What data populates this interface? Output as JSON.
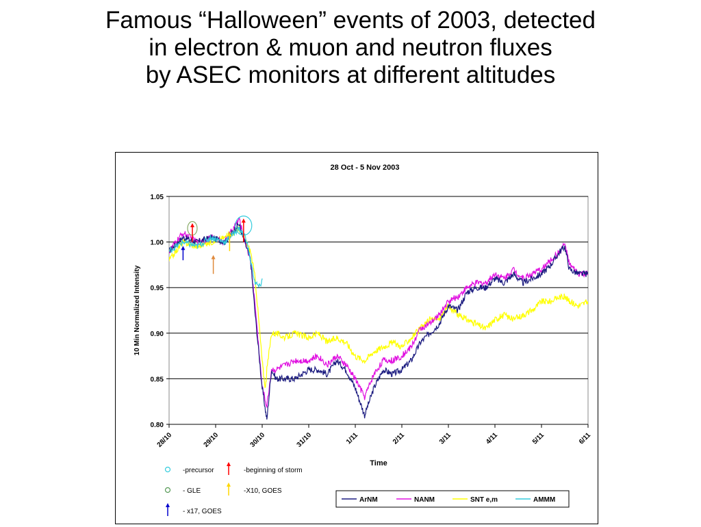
{
  "slide": {
    "title_lines": [
      "Famous “Halloween” events of 2003, detected",
      "in electron & muon and neutron fluxes",
      "by ASEC monitors at different altitudes"
    ]
  },
  "chart_data": {
    "type": "line",
    "title": "28 Oct - 5 Nov 2003",
    "xlabel": "Time",
    "ylabel": "10 Min Normalized Intensity",
    "x_unit": "days since 28/10 00:00",
    "xlim": [
      0,
      9
    ],
    "ylim": [
      0.8,
      1.05
    ],
    "yticks": [
      0.8,
      0.85,
      0.9,
      0.95,
      1.0,
      1.05
    ],
    "ytick_labels": [
      "0.80",
      "0.85",
      "0.90",
      "0.95",
      "1.00",
      "1.05"
    ],
    "xtick_labels": [
      "28/10",
      "29/10",
      "30/10",
      "31/10",
      "1/11",
      "2/11",
      "3/11",
      "4/11",
      "5/11",
      "6/11"
    ],
    "grid": "horizontal major",
    "legend_position": "bottom-right",
    "series": [
      {
        "name": "ArNM",
        "color": "#1c1c80",
        "x": [
          0,
          0.3,
          0.6,
          0.9,
          1.2,
          1.5,
          1.75,
          1.85,
          2.0,
          2.03,
          2.07,
          2.1,
          2.2,
          2.3,
          2.5,
          2.7,
          3.0,
          3.2,
          3.4,
          3.6,
          3.8,
          4.0,
          4.2,
          4.4,
          4.6,
          4.8,
          5.0,
          5.2,
          5.4,
          5.6,
          5.8,
          6.0,
          6.2,
          6.4,
          6.6,
          6.8,
          7.0,
          7.2,
          7.4,
          7.6,
          7.8,
          8.0,
          8.2,
          8.4,
          8.5,
          8.6,
          8.8,
          9.0
        ],
        "y": [
          0.99,
          1.005,
          1.0,
          1.005,
          1.0,
          1.02,
          0.98,
          0.92,
          0.84,
          0.83,
          0.815,
          0.805,
          0.86,
          0.85,
          0.85,
          0.85,
          0.86,
          0.86,
          0.855,
          0.87,
          0.86,
          0.84,
          0.81,
          0.84,
          0.86,
          0.855,
          0.86,
          0.87,
          0.89,
          0.9,
          0.91,
          0.93,
          0.925,
          0.945,
          0.95,
          0.95,
          0.96,
          0.955,
          0.965,
          0.955,
          0.96,
          0.965,
          0.975,
          0.99,
          0.995,
          0.97,
          0.965,
          0.965
        ]
      },
      {
        "name": "NANM",
        "color": "#e010e0",
        "x": [
          0,
          0.3,
          0.6,
          0.9,
          1.2,
          1.5,
          1.75,
          1.85,
          2.0,
          2.03,
          2.07,
          2.1,
          2.2,
          2.3,
          2.5,
          2.7,
          3.0,
          3.2,
          3.4,
          3.6,
          3.8,
          4.0,
          4.2,
          4.4,
          4.6,
          4.8,
          5.0,
          5.2,
          5.4,
          5.6,
          5.8,
          6.0,
          6.2,
          6.4,
          6.6,
          6.8,
          7.0,
          7.2,
          7.4,
          7.6,
          7.8,
          8.0,
          8.2,
          8.4,
          8.5,
          8.6,
          8.8,
          9.0
        ],
        "y": [
          0.99,
          1.01,
          1.0,
          1.005,
          1.0,
          1.025,
          0.98,
          0.93,
          0.84,
          0.835,
          0.825,
          0.82,
          0.86,
          0.86,
          0.865,
          0.87,
          0.87,
          0.875,
          0.865,
          0.875,
          0.865,
          0.85,
          0.83,
          0.855,
          0.87,
          0.87,
          0.875,
          0.885,
          0.905,
          0.91,
          0.92,
          0.935,
          0.94,
          0.95,
          0.955,
          0.955,
          0.965,
          0.96,
          0.97,
          0.96,
          0.965,
          0.97,
          0.98,
          0.99,
          0.998,
          0.975,
          0.965,
          0.965
        ]
      },
      {
        "name": "SNT e,m",
        "color": "#ffff00",
        "x": [
          0,
          0.3,
          0.6,
          0.9,
          1.2,
          1.5,
          1.75,
          1.85,
          2.0,
          2.03,
          2.07,
          2.1,
          2.2,
          2.3,
          2.5,
          2.7,
          3.0,
          3.2,
          3.4,
          3.6,
          3.8,
          4.0,
          4.2,
          4.4,
          4.6,
          4.8,
          5.0,
          5.2,
          5.4,
          5.6,
          5.8,
          6.0,
          6.2,
          6.4,
          6.6,
          6.8,
          7.0,
          7.2,
          7.4,
          7.6,
          7.8,
          8.0,
          8.2,
          8.4,
          8.5,
          8.6,
          8.8,
          9.0
        ],
        "y": [
          0.98,
          1.0,
          0.995,
          1.0,
          1.005,
          1.015,
          0.99,
          0.96,
          0.87,
          0.855,
          0.84,
          0.86,
          0.9,
          0.9,
          0.895,
          0.9,
          0.895,
          0.9,
          0.89,
          0.895,
          0.89,
          0.875,
          0.87,
          0.88,
          0.885,
          0.89,
          0.885,
          0.895,
          0.905,
          0.915,
          0.915,
          0.93,
          0.92,
          0.915,
          0.91,
          0.905,
          0.915,
          0.92,
          0.915,
          0.92,
          0.925,
          0.935,
          0.935,
          0.94,
          0.94,
          0.935,
          0.93,
          0.935
        ]
      },
      {
        "name": "AMMM",
        "color": "#33ccdd",
        "x": [
          0,
          0.3,
          0.6,
          0.9,
          1.2,
          1.5,
          1.65,
          1.75,
          1.85,
          1.95,
          2.0
        ],
        "y": [
          0.99,
          1.0,
          0.995,
          1.005,
          1.0,
          1.015,
          1.005,
          0.98,
          0.955,
          0.95,
          0.96
        ]
      }
    ],
    "annotation_legend": [
      {
        "symbol": "circle",
        "color": "#33ccdd",
        "label": "-precursor"
      },
      {
        "symbol": "arrow",
        "color": "#ff0000",
        "label": "-beginning of storm"
      },
      {
        "symbol": "circle",
        "color": "#559955",
        "label": "- GLE"
      },
      {
        "symbol": "arrow",
        "color": "#ffd700",
        "label": "-X10, GOES"
      },
      {
        "symbol": "arrow",
        "color": "#0000cc",
        "label": "- x17, GOES"
      }
    ],
    "annotations": [
      {
        "type": "circle",
        "color": "#88aa66",
        "x": 0.5,
        "y": 1.015
      },
      {
        "type": "circle",
        "color": "#33ccdd",
        "x": 1.6,
        "y": 1.018
      },
      {
        "type": "arrow",
        "color": "#ff0000",
        "x": 0.5,
        "y_from": 1.0,
        "y_to": 1.02
      },
      {
        "type": "arrow",
        "color": "#ff0000",
        "x": 1.6,
        "y_from": 1.0,
        "y_to": 1.025
      },
      {
        "type": "arrow",
        "color": "#e08a3c",
        "x": 0.95,
        "y_from": 0.965,
        "y_to": 0.985
      },
      {
        "type": "arrow",
        "color": "#0000cc",
        "x": 0.3,
        "y_from": 0.98,
        "y_to": 0.995
      },
      {
        "type": "arrow",
        "color": "#ffd700",
        "x": 1.3,
        "y_from": 0.99,
        "y_to": 1.01
      }
    ]
  }
}
